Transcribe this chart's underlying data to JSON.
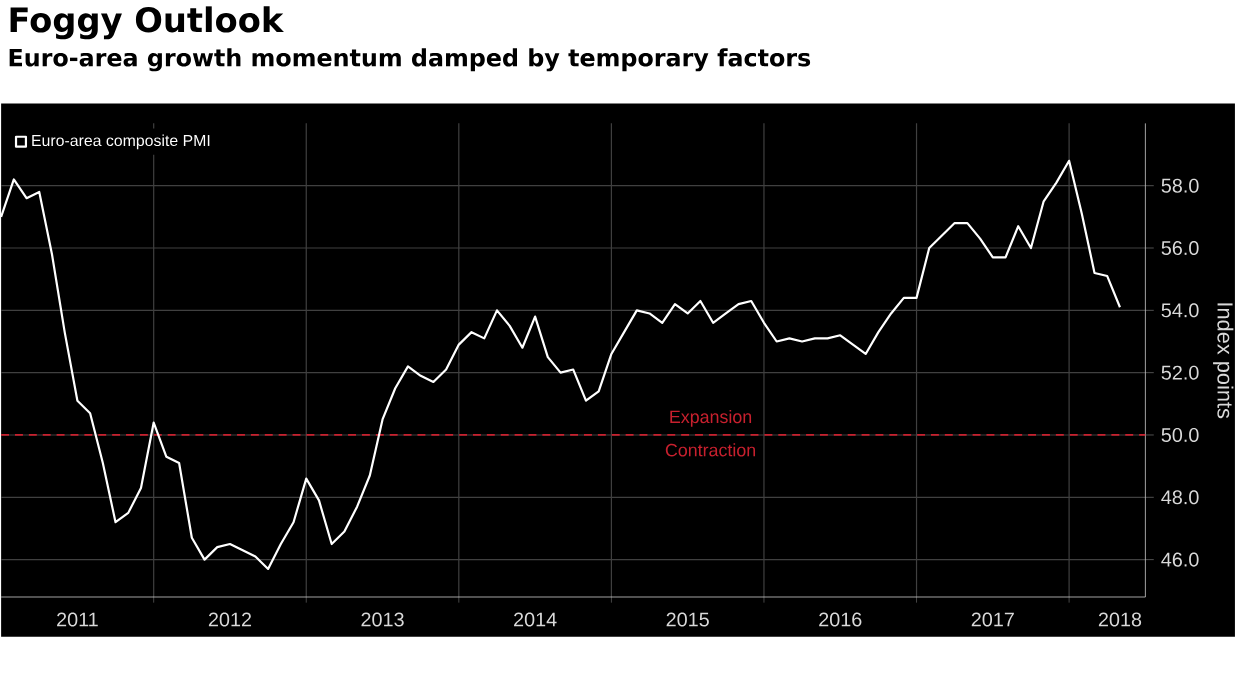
{
  "chart_data": {
    "type": "line",
    "title": "Foggy Outlook",
    "subtitle": "Euro-area growth momentum damped by temporary factors",
    "ylabel": "Index points",
    "x": [
      "2011-01",
      "2011-02",
      "2011-03",
      "2011-04",
      "2011-05",
      "2011-06",
      "2011-07",
      "2011-08",
      "2011-09",
      "2011-10",
      "2011-11",
      "2011-12",
      "2012-01",
      "2012-02",
      "2012-03",
      "2012-04",
      "2012-05",
      "2012-06",
      "2012-07",
      "2012-08",
      "2012-09",
      "2012-10",
      "2012-11",
      "2012-12",
      "2013-01",
      "2013-02",
      "2013-03",
      "2013-04",
      "2013-05",
      "2013-06",
      "2013-07",
      "2013-08",
      "2013-09",
      "2013-10",
      "2013-11",
      "2013-12",
      "2014-01",
      "2014-02",
      "2014-03",
      "2014-04",
      "2014-05",
      "2014-06",
      "2014-07",
      "2014-08",
      "2014-09",
      "2014-10",
      "2014-11",
      "2014-12",
      "2015-01",
      "2015-02",
      "2015-03",
      "2015-04",
      "2015-05",
      "2015-06",
      "2015-07",
      "2015-08",
      "2015-09",
      "2015-10",
      "2015-11",
      "2015-12",
      "2016-01",
      "2016-02",
      "2016-03",
      "2016-04",
      "2016-05",
      "2016-06",
      "2016-07",
      "2016-08",
      "2016-09",
      "2016-10",
      "2016-11",
      "2016-12",
      "2017-01",
      "2017-02",
      "2017-03",
      "2017-04",
      "2017-05",
      "2017-06",
      "2017-07",
      "2017-08",
      "2017-09",
      "2017-10",
      "2017-11",
      "2017-12",
      "2018-01",
      "2018-02",
      "2018-03",
      "2018-04",
      "2018-05"
    ],
    "series": [
      {
        "name": "Euro-area composite PMI",
        "color": "#ffffff",
        "values": [
          57.0,
          58.2,
          57.6,
          57.8,
          55.8,
          53.3,
          51.1,
          50.7,
          49.1,
          47.2,
          47.5,
          48.3,
          50.4,
          49.3,
          49.1,
          46.7,
          46.0,
          46.4,
          46.5,
          46.3,
          46.1,
          45.7,
          46.5,
          47.2,
          48.6,
          47.9,
          46.5,
          46.9,
          47.7,
          48.7,
          50.5,
          51.5,
          52.2,
          51.9,
          51.7,
          52.1,
          52.9,
          53.3,
          53.1,
          54.0,
          53.5,
          52.8,
          53.8,
          52.5,
          52.0,
          52.1,
          51.1,
          51.4,
          52.6,
          53.3,
          54.0,
          53.9,
          53.6,
          54.2,
          53.9,
          54.3,
          53.6,
          53.9,
          54.2,
          54.3,
          53.6,
          53.0,
          53.1,
          53.0,
          53.1,
          53.1,
          53.2,
          52.9,
          52.6,
          53.3,
          53.9,
          54.4,
          54.4,
          56.0,
          56.4,
          56.8,
          56.8,
          56.3,
          55.7,
          55.7,
          56.7,
          56.0,
          57.5,
          58.1,
          58.8,
          57.1,
          55.2,
          55.1,
          54.1
        ]
      }
    ],
    "xlim": [
      "2011-01",
      "2018-07"
    ],
    "xticks": [
      {
        "value": "2011-07",
        "label": "2011"
      },
      {
        "value": "2012-01",
        "label": null
      },
      {
        "value": "2012-07",
        "label": "2012"
      },
      {
        "value": "2013-01",
        "label": null
      },
      {
        "value": "2013-07",
        "label": "2013"
      },
      {
        "value": "2014-01",
        "label": null
      },
      {
        "value": "2014-07",
        "label": "2014"
      },
      {
        "value": "2015-01",
        "label": null
      },
      {
        "value": "2015-07",
        "label": "2015"
      },
      {
        "value": "2016-01",
        "label": null
      },
      {
        "value": "2016-07",
        "label": "2016"
      },
      {
        "value": "2017-01",
        "label": null
      },
      {
        "value": "2017-07",
        "label": "2017"
      },
      {
        "value": "2018-01",
        "label": null
      },
      {
        "value": "2018-05",
        "label": "2018"
      }
    ],
    "ylim": [
      44.8,
      60
    ],
    "yticks": [
      {
        "value": 46,
        "label": "46.0"
      },
      {
        "value": 48,
        "label": "48.0"
      },
      {
        "value": 50,
        "label": "50.0"
      },
      {
        "value": 52,
        "label": "52.0"
      },
      {
        "value": 54,
        "label": "54.0"
      },
      {
        "value": 56,
        "label": "56.0"
      },
      {
        "value": 58,
        "label": "58.0"
      }
    ],
    "ref_lines": [
      {
        "axis": "y",
        "value": 50,
        "color": "#c8202e",
        "line_style": "dashed"
      }
    ],
    "annotations": [
      "Expansion",
      "Contraction"
    ],
    "grid": true,
    "legend": "top left",
    "marker": "none",
    "line_style": "solid"
  }
}
